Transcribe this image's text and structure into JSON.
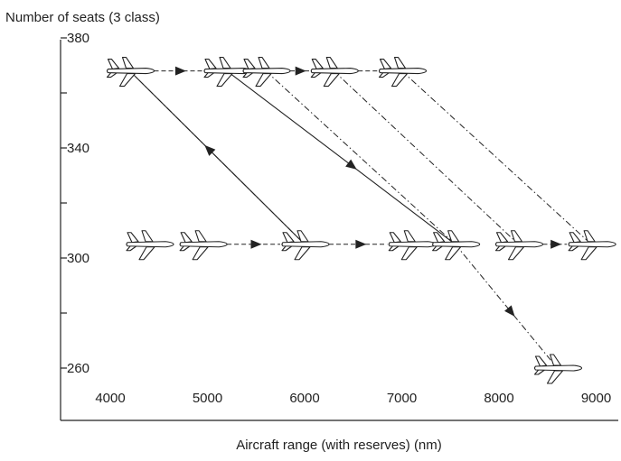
{
  "chart_data": {
    "type": "scatter",
    "title": "",
    "ylabel": "Number of seats (3 class)",
    "xlabel": "Aircraft range (with reserves) (nm)",
    "x_ticks": [
      4000,
      5000,
      6000,
      7000,
      8000,
      9000
    ],
    "y_ticks": [
      260,
      300,
      340,
      380
    ],
    "xlim": [
      3600,
      9300
    ],
    "ylim": [
      250,
      380
    ],
    "aircraft": [
      {
        "id": "a1",
        "range": 4200,
        "seats": 368
      },
      {
        "id": "a2",
        "range": 5200,
        "seats": 368
      },
      {
        "id": "a3",
        "range": 5600,
        "seats": 368
      },
      {
        "id": "a4",
        "range": 6300,
        "seats": 368
      },
      {
        "id": "a5",
        "range": 7000,
        "seats": 368
      },
      {
        "id": "b1",
        "range": 4400,
        "seats": 305
      },
      {
        "id": "b2",
        "range": 4950,
        "seats": 305
      },
      {
        "id": "b3",
        "range": 6000,
        "seats": 305
      },
      {
        "id": "b4",
        "range": 7100,
        "seats": 305
      },
      {
        "id": "b5",
        "range": 7550,
        "seats": 305
      },
      {
        "id": "b6",
        "range": 8200,
        "seats": 305
      },
      {
        "id": "b7",
        "range": 8950,
        "seats": 305
      },
      {
        "id": "c1",
        "range": 8600,
        "seats": 260
      }
    ],
    "connections": [
      {
        "from": "a1",
        "to": "a2",
        "style": "dashed",
        "arrow": true
      },
      {
        "from": "a3",
        "to": "a4",
        "style": "dashed",
        "arrow": true
      },
      {
        "from": "a4",
        "to": "a5",
        "style": "dashed",
        "arrow": false
      },
      {
        "from": "b2",
        "to": "b3",
        "style": "dashed",
        "arrow": true
      },
      {
        "from": "b3",
        "to": "b4",
        "style": "dashed",
        "arrow": true
      },
      {
        "from": "b6",
        "to": "b7",
        "style": "dashed",
        "arrow": true
      },
      {
        "from": "b3",
        "to": "a1",
        "style": "solid",
        "arrow": true
      },
      {
        "from": "a2",
        "to": "b5",
        "style": "solid",
        "arrow": true
      },
      {
        "from": "a1",
        "to": "b3",
        "style": "dashdot",
        "arrow": false
      },
      {
        "from": "a3",
        "to": "b5",
        "style": "dashdot",
        "arrow": false
      },
      {
        "from": "a4",
        "to": "b6",
        "style": "dashdot",
        "arrow": false
      },
      {
        "from": "a5",
        "to": "b7",
        "style": "dashdot",
        "arrow": false
      },
      {
        "from": "b5",
        "to": "c1",
        "style": "dashdot",
        "arrow": true
      }
    ]
  }
}
